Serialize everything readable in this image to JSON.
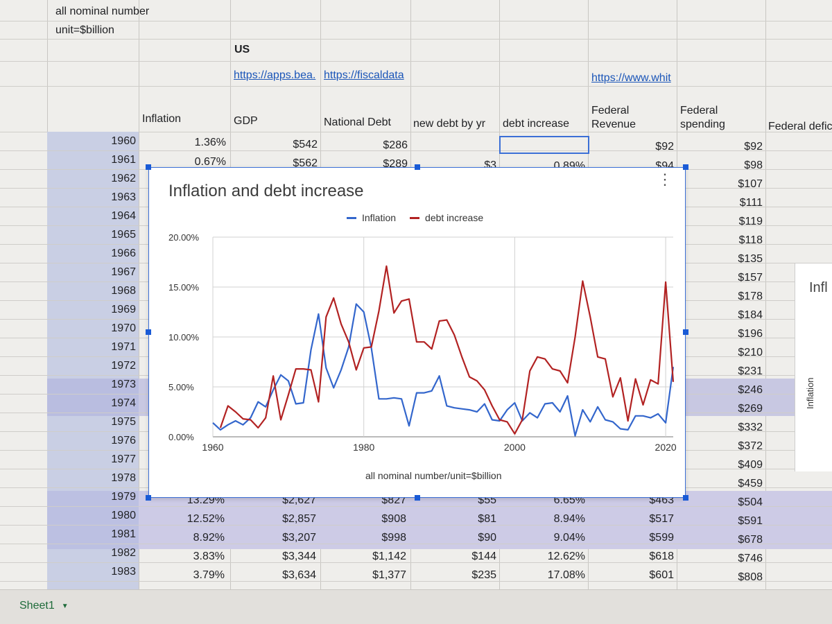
{
  "sheet": {
    "top_notes": [
      "all nominal number",
      "unit=$billion"
    ],
    "country_label": "US",
    "links": [
      "https://apps.bea.",
      "https://fiscaldata",
      "https://www.whit"
    ],
    "headers": {
      "inflation": "Inflation",
      "gdp": "GDP",
      "national_debt": "National Debt",
      "new_debt": "new debt by yr",
      "debt_increase": "debt increase",
      "federal_revenue": "Federal Revenue",
      "federal_spending": "Federal spending",
      "federal_deficit": "Federal defic"
    },
    "years": [
      "1960",
      "1961",
      "1962",
      "1963",
      "1964",
      "1965",
      "1966",
      "1967",
      "1968",
      "1969",
      "1970",
      "1971",
      "1972",
      "1973",
      "1974",
      "1975",
      "1976",
      "1977",
      "1978",
      "1979",
      "1980",
      "1981",
      "1982",
      "1983"
    ],
    "top_rows": [
      {
        "inflation": "1.36%",
        "gdp": "$542",
        "debt": "$286",
        "new_debt": "",
        "increase": "",
        "revenue": "$92",
        "spending": "$92"
      },
      {
        "inflation": "0.67%",
        "gdp": "$562",
        "debt": "$289",
        "new_debt": "$3",
        "increase": "0.89%",
        "revenue": "$94",
        "spending": "$98"
      }
    ],
    "spending_column": [
      "$92",
      "$98",
      "$107",
      "$111",
      "$119",
      "$118",
      "$135",
      "$157",
      "$178",
      "$184",
      "$196",
      "$210",
      "$231",
      "$246",
      "$269",
      "$332",
      "$372",
      "$409",
      "$459",
      "$504",
      "$591",
      "$678",
      "$746",
      "$808"
    ],
    "bottom_rows": [
      {
        "year": "1979",
        "inflation": "13.29%",
        "gdp": "$2,627",
        "debt": "$827",
        "new_debt": "$55",
        "increase": "6.65%",
        "revenue": "$463",
        "spending": "$504"
      },
      {
        "year": "1980",
        "inflation": "12.52%",
        "gdp": "$2,857",
        "debt": "$908",
        "new_debt": "$81",
        "increase": "8.94%",
        "revenue": "$517",
        "spending": "$591"
      },
      {
        "year": "1981",
        "inflation": "8.92%",
        "gdp": "$3,207",
        "debt": "$998",
        "new_debt": "$90",
        "increase": "9.04%",
        "revenue": "$599",
        "spending": "$678"
      },
      {
        "year": "1982",
        "inflation": "3.83%",
        "gdp": "$3,344",
        "debt": "$1,142",
        "new_debt": "$144",
        "increase": "12.62%",
        "revenue": "$618",
        "spending": "$746"
      },
      {
        "year": "1983",
        "inflation": "3.79%",
        "gdp": "$3,634",
        "debt": "$1,377",
        "new_debt": "$235",
        "increase": "17.08%",
        "revenue": "$601",
        "spending": "$808"
      }
    ]
  },
  "chart": {
    "menu_icon": "kebab-menu-icon",
    "colors": {
      "inflation": "#3366cc",
      "debt": "#b22222",
      "grid": "#d0d0d0"
    }
  },
  "chart_data": {
    "type": "line",
    "title": "Inflation and debt increase",
    "xlabel": "all nominal number/unit=$billion",
    "ylabel": "",
    "x_ticks": [
      "1960",
      "1980",
      "2000",
      "2020"
    ],
    "y_ticks": [
      "0.00%",
      "5.00%",
      "10.00%",
      "15.00%",
      "20.00%"
    ],
    "xlim": [
      1960,
      2021
    ],
    "ylim": [
      0,
      20
    ],
    "legend_position": "top",
    "grid": true,
    "x": [
      1960,
      1961,
      1962,
      1963,
      1964,
      1965,
      1966,
      1967,
      1968,
      1969,
      1970,
      1971,
      1972,
      1973,
      1974,
      1975,
      1976,
      1977,
      1978,
      1979,
      1980,
      1981,
      1982,
      1983,
      1984,
      1985,
      1986,
      1987,
      1988,
      1989,
      1990,
      1991,
      1992,
      1993,
      1994,
      1995,
      1996,
      1997,
      1998,
      1999,
      2000,
      2001,
      2002,
      2003,
      2004,
      2005,
      2006,
      2007,
      2008,
      2009,
      2010,
      2011,
      2012,
      2013,
      2014,
      2015,
      2016,
      2017,
      2018,
      2019,
      2020,
      2021
    ],
    "series": [
      {
        "name": "Inflation",
        "values": [
          1.4,
          0.7,
          1.2,
          1.6,
          1.2,
          1.9,
          3.5,
          3.0,
          4.7,
          6.2,
          5.6,
          3.3,
          3.4,
          8.7,
          12.3,
          6.9,
          4.9,
          6.7,
          9.0,
          13.3,
          12.5,
          8.9,
          3.8,
          3.8,
          3.9,
          3.8,
          1.1,
          4.4,
          4.4,
          4.6,
          6.1,
          3.1,
          2.9,
          2.8,
          2.7,
          2.5,
          3.3,
          1.7,
          1.6,
          2.7,
          3.4,
          1.6,
          2.4,
          1.9,
          3.3,
          3.4,
          2.5,
          4.1,
          0.1,
          2.7,
          1.5,
          3.0,
          1.7,
          1.5,
          0.8,
          0.7,
          2.1,
          2.1,
          1.9,
          2.3,
          1.4,
          7.0
        ]
      },
      {
        "name": "debt increase",
        "values": [
          null,
          0.9,
          3.1,
          2.5,
          1.8,
          1.7,
          0.9,
          1.9,
          6.1,
          1.7,
          4.2,
          6.8,
          6.8,
          6.7,
          3.5,
          12.0,
          13.9,
          11.3,
          9.5,
          6.7,
          8.9,
          9.0,
          12.6,
          17.1,
          12.4,
          13.6,
          13.8,
          9.5,
          9.5,
          8.8,
          11.6,
          11.7,
          10.2,
          8.0,
          6.0,
          5.6,
          4.7,
          3.1,
          1.7,
          1.5,
          0.3,
          1.7,
          6.6,
          8.0,
          7.8,
          6.8,
          6.6,
          5.4,
          10.0,
          15.6,
          12.0,
          8.0,
          7.8,
          4.0,
          5.9,
          1.6,
          5.8,
          3.2,
          5.7,
          5.3,
          15.5,
          5.5
        ]
      }
    ]
  },
  "bottom": {
    "sheet_tab": "Sheet1",
    "right_panel_title": "Infl",
    "right_panel_axis": "Inflation"
  }
}
